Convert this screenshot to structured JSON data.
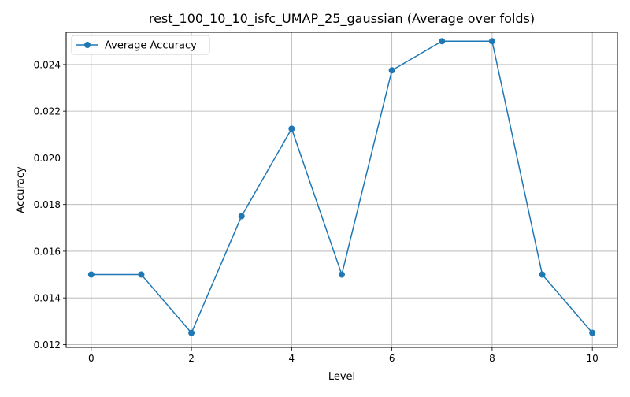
{
  "chart_data": {
    "type": "line",
    "title": "rest_100_10_10_isfc_UMAP_25_gaussian (Average over folds)",
    "xlabel": "Level",
    "ylabel": "Accuracy",
    "xlim": [
      -0.5,
      10.5
    ],
    "ylim": [
      0.01188,
      0.02538
    ],
    "xticks": [
      0,
      2,
      4,
      6,
      8,
      10
    ],
    "xtick_labels": [
      "0",
      "2",
      "4",
      "6",
      "8",
      "10"
    ],
    "yticks": [
      0.012,
      0.014,
      0.016,
      0.018,
      0.02,
      0.022,
      0.024
    ],
    "ytick_labels": [
      "0.012",
      "0.014",
      "0.016",
      "0.018",
      "0.020",
      "0.022",
      "0.024"
    ],
    "grid": true,
    "legend_position": "upper left",
    "series": [
      {
        "name": "Average Accuracy",
        "color": "#1f77b4",
        "marker": "circle",
        "x": [
          0,
          1,
          2,
          3,
          4,
          5,
          6,
          7,
          8,
          9,
          10
        ],
        "y": [
          0.015,
          0.015,
          0.0125,
          0.0175,
          0.02125,
          0.015,
          0.02375,
          0.025,
          0.025,
          0.015,
          0.0125
        ]
      }
    ]
  }
}
